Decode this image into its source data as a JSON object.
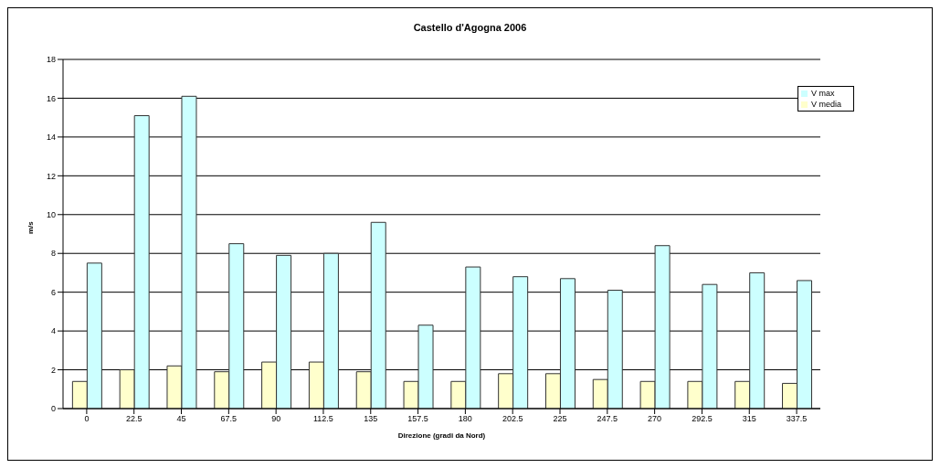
{
  "chart_data": {
    "type": "bar",
    "title": "Castello d'Agogna 2006",
    "xlabel": "Direzione (gradi da Nord)",
    "ylabel": "m/s",
    "categories": [
      "0",
      "22.5",
      "45",
      "67.5",
      "90",
      "112.5",
      "135",
      "157.5",
      "180",
      "202.5",
      "225",
      "247.5",
      "270",
      "292.5",
      "315",
      "337.5"
    ],
    "series": [
      {
        "name": "V media",
        "color": "#ffffcc",
        "values": [
          1.4,
          2.0,
          2.2,
          1.9,
          2.4,
          2.4,
          1.9,
          1.4,
          1.4,
          1.8,
          1.8,
          1.5,
          1.4,
          1.4,
          1.4,
          1.3
        ]
      },
      {
        "name": "V max",
        "color": "#ccffff",
        "values": [
          7.5,
          15.1,
          16.1,
          8.5,
          7.9,
          8.0,
          9.6,
          4.3,
          7.3,
          6.8,
          6.7,
          6.1,
          8.4,
          6.4,
          7.0,
          6.6
        ]
      }
    ],
    "ylim": [
      0,
      18
    ],
    "yticks": [
      0,
      2,
      4,
      6,
      8,
      10,
      12,
      14,
      16,
      18
    ],
    "grid": "y",
    "legend": "top right"
  }
}
